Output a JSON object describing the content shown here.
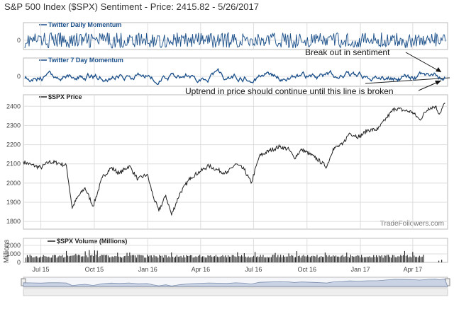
{
  "title": "S&P 500 Index ($SPX) Sentiment - Price: 2415.82 - 5/26/2017",
  "colors": {
    "sentiment_line": "#1a4f8a",
    "price_line": "#222222",
    "volume_bars": "#222222",
    "grid": "#dddddd",
    "axis_text": "#444444",
    "navigator_fill": "#c9d3e3",
    "navigator_line": "#7d8fb0"
  },
  "chart_data": [
    {
      "name": "twitter-daily-momentum",
      "type": "line",
      "legend": "Twitter Daily Momentum",
      "yticks": [
        0
      ],
      "ylim": [
        -1,
        1
      ],
      "note": "high-frequency oscillation around 0"
    },
    {
      "name": "twitter-7-day-momentum",
      "type": "line",
      "legend": "Twitter 7 Day Momentum",
      "yticks": [
        0
      ],
      "ylim": [
        -1,
        1
      ],
      "annotations": [
        {
          "text": "Break out in sentiment"
        },
        {
          "text": "Uptrend in price should continue until this line is broken"
        }
      ]
    },
    {
      "name": "spx-price",
      "type": "line",
      "legend": "$SPX Price",
      "ylabel": "",
      "yticks": [
        1800,
        1900,
        2000,
        2100,
        2200,
        2300,
        2400
      ],
      "ylim": [
        1760,
        2460
      ],
      "x": [
        "2015-06-01",
        "2015-06-15",
        "2015-07-01",
        "2015-07-15",
        "2015-07-31",
        "2015-08-14",
        "2015-08-24",
        "2015-09-01",
        "2015-09-15",
        "2015-09-29",
        "2015-10-15",
        "2015-10-30",
        "2015-11-13",
        "2015-11-30",
        "2015-12-15",
        "2015-12-31",
        "2016-01-11",
        "2016-01-20",
        "2016-02-01",
        "2016-02-11",
        "2016-02-25",
        "2016-03-15",
        "2016-03-31",
        "2016-04-15",
        "2016-04-29",
        "2016-05-16",
        "2016-05-31",
        "2016-06-15",
        "2016-06-27",
        "2016-07-11",
        "2016-07-29",
        "2016-08-15",
        "2016-08-31",
        "2016-09-09",
        "2016-09-22",
        "2016-10-14",
        "2016-11-04",
        "2016-11-15",
        "2016-12-01",
        "2016-12-13",
        "2016-12-30",
        "2017-01-13",
        "2017-01-31",
        "2017-02-15",
        "2017-03-01",
        "2017-03-15",
        "2017-03-31",
        "2017-04-13",
        "2017-04-28",
        "2017-05-10",
        "2017-05-17",
        "2017-05-26"
      ],
      "values": [
        2110,
        2095,
        2080,
        2110,
        2105,
        2090,
        1870,
        1920,
        1975,
        1880,
        2030,
        2080,
        2050,
        2090,
        2020,
        2045,
        1925,
        1855,
        1935,
        1835,
        1945,
        2030,
        2060,
        2090,
        2070,
        2050,
        2100,
        2070,
        2000,
        2140,
        2170,
        2190,
        2175,
        2130,
        2175,
        2135,
        2085,
        2180,
        2200,
        2260,
        2240,
        2275,
        2280,
        2340,
        2390,
        2380,
        2370,
        2330,
        2390,
        2400,
        2360,
        2415.82
      ],
      "xtick_labels": [
        "Jul 15",
        "Oct 15",
        "Jan 16",
        "Apr 16",
        "Jul 16",
        "Oct 16",
        "Jan 17",
        "Apr 17"
      ],
      "watermark": "TradeFollowers.com"
    },
    {
      "name": "spx-volume",
      "type": "bar",
      "legend": "$SPX Volume (Millions)",
      "ylabel": "Millions",
      "yticks": [
        0,
        1000,
        2000
      ],
      "ylim": [
        0,
        2000
      ],
      "note": "daily volume bars, mostly 500-1000M with spikes"
    }
  ]
}
